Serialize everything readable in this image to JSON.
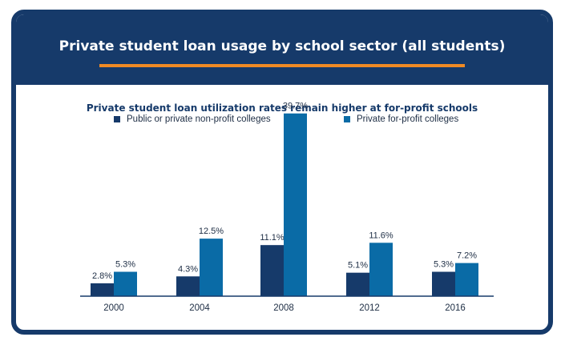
{
  "header": {
    "title": "Private student loan usage by school sector (all students)"
  },
  "chart_data": {
    "type": "bar",
    "title": "Private student loan utilization rates remain higher at for-profit schools",
    "categories": [
      "2000",
      "2004",
      "2008",
      "2012",
      "2016"
    ],
    "series": [
      {
        "name": "Public or private non-profit colleges",
        "color": "#163a6a",
        "values": [
          2.8,
          4.3,
          11.1,
          5.1,
          5.3
        ],
        "labels": [
          "2.8%",
          "4.3%",
          "11.1%",
          "5.1%",
          "5.3%"
        ]
      },
      {
        "name": "Private for-profit colleges",
        "color": "#0a6ba6",
        "values": [
          5.3,
          12.5,
          39.7,
          11.6,
          7.2
        ],
        "labels": [
          "5.3%",
          "12.5%",
          "39.7%",
          "11.6%",
          "7.2%"
        ]
      }
    ],
    "ylim": [
      0,
      40
    ],
    "grid": false,
    "legend": "top"
  },
  "colors": {
    "header": "#163a6a",
    "accent": "#f08a24",
    "text_dark": "#1d2d44"
  }
}
